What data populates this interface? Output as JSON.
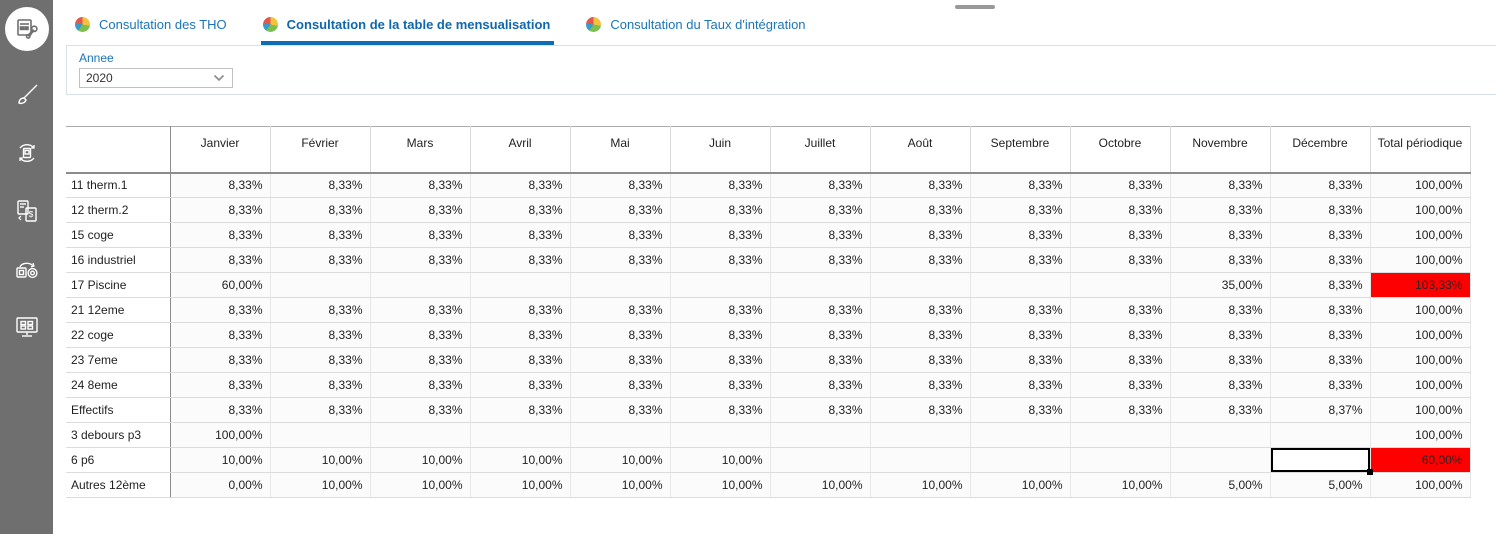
{
  "window": {
    "collapse_handle": "drag-handle"
  },
  "sidebar": {
    "items": [
      {
        "icon": "report-editor-wrench-icon",
        "active": true
      },
      {
        "icon": "paintbrush-icon",
        "active": false
      },
      {
        "icon": "sync-device-icon",
        "active": false
      },
      {
        "icon": "billing-documents-icon",
        "active": false
      },
      {
        "icon": "export-settings-icon",
        "active": false
      },
      {
        "icon": "monitor-apps-icon",
        "active": false
      }
    ]
  },
  "tabs": [
    {
      "label": "Consultation des THO",
      "active": false
    },
    {
      "label": "Consultation de la table de mensualisation",
      "active": true
    },
    {
      "label": "Consultation du Taux d'intégration",
      "active": false
    }
  ],
  "filters": {
    "year_label": "Annee",
    "year_value": "2020"
  },
  "table": {
    "columns": [
      "Janvier",
      "Février",
      "Mars",
      "Avril",
      "Mai",
      "Juin",
      "Juillet",
      "Août",
      "Septembre",
      "Octobre",
      "Novembre",
      "Décembre",
      "Total périodique"
    ],
    "rows": [
      {
        "label": "11 therm.1",
        "cells": [
          "8,33%",
          "8,33%",
          "8,33%",
          "8,33%",
          "8,33%",
          "8,33%",
          "8,33%",
          "8,33%",
          "8,33%",
          "8,33%",
          "8,33%",
          "8,33%",
          "100,00%"
        ]
      },
      {
        "label": "12 therm.2",
        "cells": [
          "8,33%",
          "8,33%",
          "8,33%",
          "8,33%",
          "8,33%",
          "8,33%",
          "8,33%",
          "8,33%",
          "8,33%",
          "8,33%",
          "8,33%",
          "8,33%",
          "100,00%"
        ]
      },
      {
        "label": "15 coge",
        "cells": [
          "8,33%",
          "8,33%",
          "8,33%",
          "8,33%",
          "8,33%",
          "8,33%",
          "8,33%",
          "8,33%",
          "8,33%",
          "8,33%",
          "8,33%",
          "8,33%",
          "100,00%"
        ]
      },
      {
        "label": "16 industriel",
        "cells": [
          "8,33%",
          "8,33%",
          "8,33%",
          "8,33%",
          "8,33%",
          "8,33%",
          "8,33%",
          "8,33%",
          "8,33%",
          "8,33%",
          "8,33%",
          "8,33%",
          "100,00%"
        ]
      },
      {
        "label": "17 Piscine",
        "cells": [
          "60,00%",
          "",
          "",
          "",
          "",
          "",
          "",
          "",
          "",
          "",
          "35,00%",
          "8,33%",
          "103,33%"
        ],
        "alert_cells": [
          12
        ]
      },
      {
        "label": "21 12eme",
        "cells": [
          "8,33%",
          "8,33%",
          "8,33%",
          "8,33%",
          "8,33%",
          "8,33%",
          "8,33%",
          "8,33%",
          "8,33%",
          "8,33%",
          "8,33%",
          "8,33%",
          "100,00%"
        ]
      },
      {
        "label": "22 coge",
        "cells": [
          "8,33%",
          "8,33%",
          "8,33%",
          "8,33%",
          "8,33%",
          "8,33%",
          "8,33%",
          "8,33%",
          "8,33%",
          "8,33%",
          "8,33%",
          "8,33%",
          "100,00%"
        ]
      },
      {
        "label": "23 7eme",
        "cells": [
          "8,33%",
          "8,33%",
          "8,33%",
          "8,33%",
          "8,33%",
          "8,33%",
          "8,33%",
          "8,33%",
          "8,33%",
          "8,33%",
          "8,33%",
          "8,33%",
          "100,00%"
        ]
      },
      {
        "label": "24 8eme",
        "cells": [
          "8,33%",
          "8,33%",
          "8,33%",
          "8,33%",
          "8,33%",
          "8,33%",
          "8,33%",
          "8,33%",
          "8,33%",
          "8,33%",
          "8,33%",
          "8,33%",
          "100,00%"
        ]
      },
      {
        "label": "Effectifs",
        "cells": [
          "8,33%",
          "8,33%",
          "8,33%",
          "8,33%",
          "8,33%",
          "8,33%",
          "8,33%",
          "8,33%",
          "8,33%",
          "8,33%",
          "8,33%",
          "8,37%",
          "100,00%"
        ]
      },
      {
        "label": "3 debours p3",
        "cells": [
          "100,00%",
          "",
          "",
          "",
          "",
          "",
          "",
          "",
          "",
          "",
          "",
          "",
          "100,00%"
        ]
      },
      {
        "label": "6 p6",
        "cells": [
          "10,00%",
          "10,00%",
          "10,00%",
          "10,00%",
          "10,00%",
          "10,00%",
          "",
          "",
          "",
          "",
          "",
          "",
          "60,00%"
        ],
        "alert_cells": [
          12
        ],
        "selected_cell": 11
      },
      {
        "label": "Autres 12ème",
        "cells": [
          "0,00%",
          "10,00%",
          "10,00%",
          "10,00%",
          "10,00%",
          "10,00%",
          "10,00%",
          "10,00%",
          "10,00%",
          "10,00%",
          "5,00%",
          "5,00%",
          "100,00%"
        ]
      }
    ]
  },
  "colors": {
    "sidebar_bg": "#6f6f6f",
    "accent_blue": "#1b74b8",
    "tab_underline": "#0d6db6",
    "alert_red": "#fe0000"
  }
}
